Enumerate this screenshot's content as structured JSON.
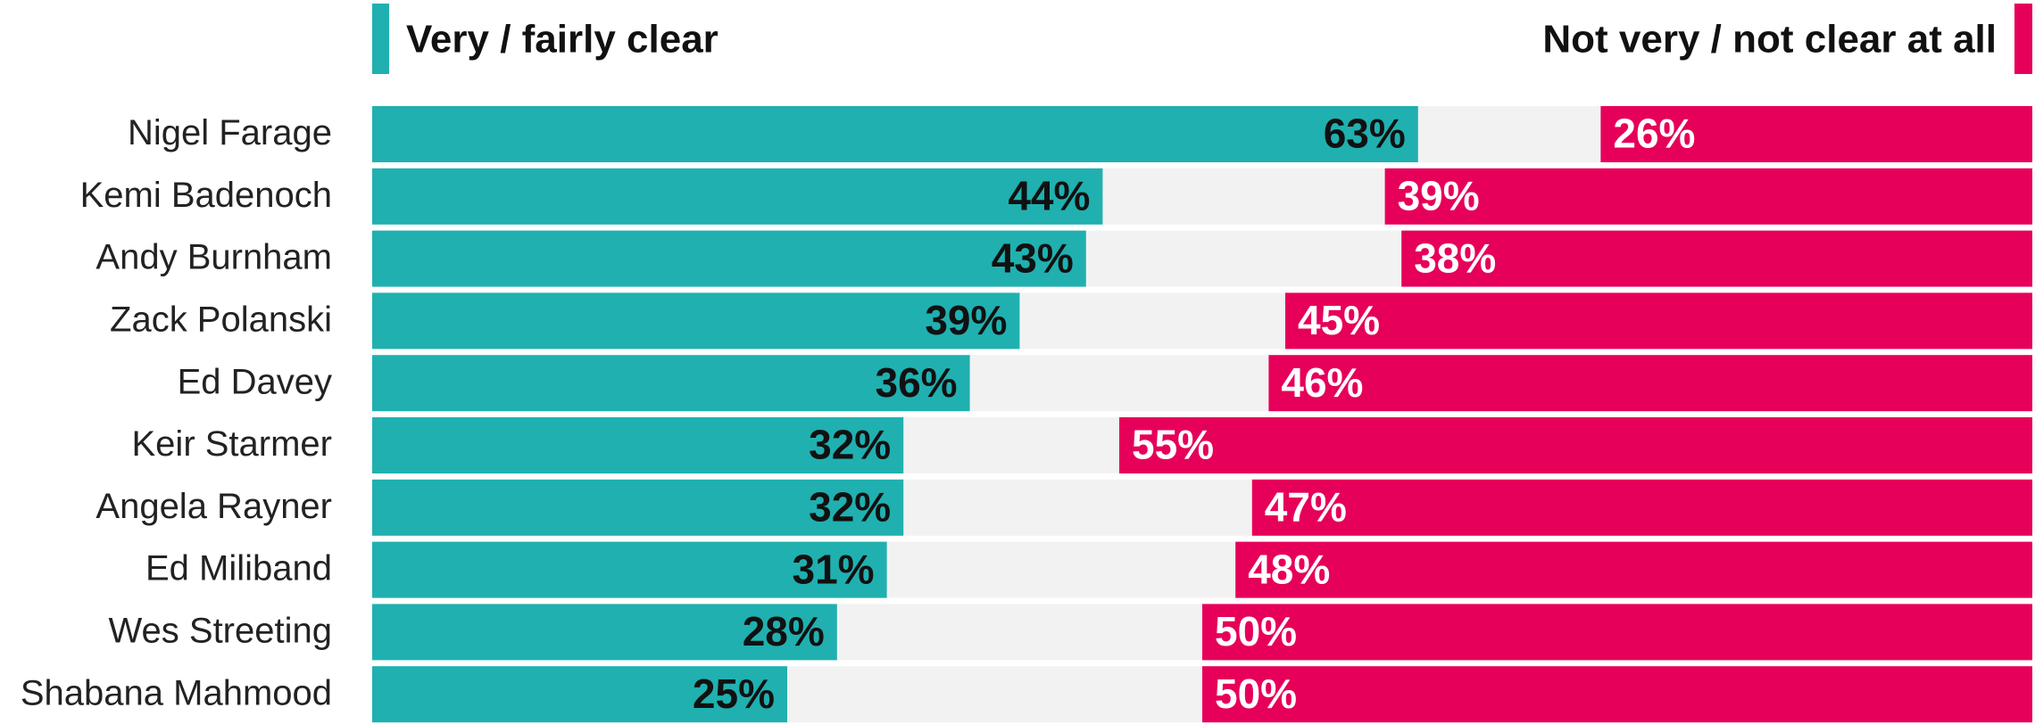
{
  "chart_data": {
    "type": "diverging_bar",
    "categories": [
      "Nigel Farage",
      "Kemi Badenoch",
      "Andy Burnham",
      "Zack Polanski",
      "Ed Davey",
      "Keir Starmer",
      "Angela Rayner",
      "Ed Miliband",
      "Wes Streeting",
      "Shabana Mahmood"
    ],
    "xlim": [
      0,
      100
    ],
    "series": [
      {
        "name": "Very / fairly clear",
        "color": "#20b0b0",
        "values": [
          63,
          44,
          43,
          39,
          36,
          32,
          32,
          31,
          28,
          25
        ],
        "value_labels": [
          "63%",
          "44%",
          "43%",
          "39%",
          "36%",
          "32%",
          "32%",
          "31%",
          "28%",
          "25%"
        ]
      },
      {
        "name": "Not very / not clear at all",
        "color": "#e6005a",
        "values": [
          26,
          39,
          38,
          45,
          46,
          55,
          47,
          48,
          50,
          50
        ],
        "value_labels": [
          "26%",
          "39%",
          "38%",
          "45%",
          "46%",
          "55%",
          "47%",
          "48%",
          "50%",
          "50%"
        ]
      }
    ]
  }
}
